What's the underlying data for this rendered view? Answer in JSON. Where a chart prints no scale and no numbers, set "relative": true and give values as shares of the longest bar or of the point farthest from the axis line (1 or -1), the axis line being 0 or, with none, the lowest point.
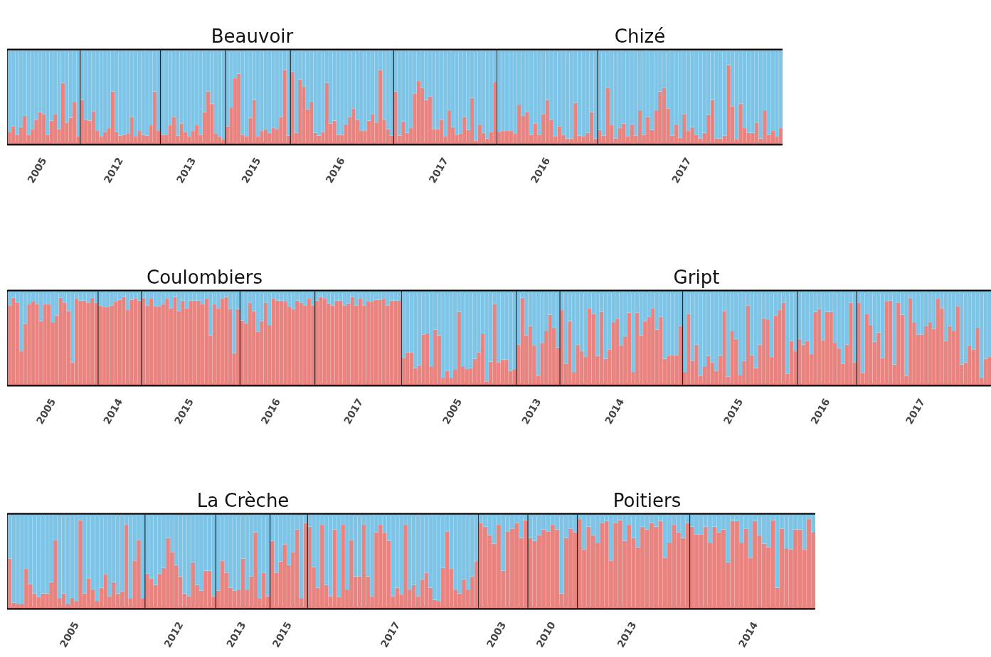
{
  "chart_data": [
    {
      "type": "bar",
      "stacked": true,
      "relative": true,
      "title": "Beauvoir",
      "categories": [
        null,
        null,
        null,
        null,
        null,
        null,
        null,
        null,
        null,
        "2005",
        null,
        null,
        null,
        null,
        null,
        null,
        null,
        null,
        null,
        null,
        null,
        null,
        null,
        null,
        null,
        null,
        null,
        null,
        null,
        "2012",
        null,
        null,
        null,
        null,
        null,
        null,
        null,
        null,
        null,
        null,
        null,
        null,
        null,
        null,
        null,
        null,
        null,
        null,
        "2013",
        null,
        null,
        null,
        null,
        null,
        null,
        null,
        null,
        null,
        null,
        null,
        null,
        null,
        null,
        null,
        null,
        "2015",
        null,
        null,
        null,
        null,
        null,
        null,
        null,
        null,
        null,
        null,
        null,
        null,
        null,
        null,
        null,
        null,
        null,
        null,
        null,
        null,
        null,
        "2016",
        null,
        null,
        null,
        null,
        null,
        null,
        null,
        null,
        null,
        null,
        null,
        null,
        null,
        null,
        null,
        null,
        null,
        null,
        null,
        null,
        null,
        null,
        null,
        null,
        null,
        null,
        "2017",
        null,
        null,
        null,
        null,
        null,
        null,
        null,
        null,
        null,
        null,
        null,
        null,
        null
      ],
      "series": [
        {
          "color": "#e8837f",
          "values": [
            0.13,
            0.19,
            0.1,
            0.18,
            0.3,
            0.1,
            0.16,
            0.26,
            0.34,
            0.32,
            0.1,
            0.25,
            0.32,
            0.16,
            0.65,
            0.23,
            0.28,
            0.45,
            0.08,
            0.47,
            0.26,
            0.25,
            0.35,
            0.14,
            0.08,
            0.13,
            0.17,
            0.56,
            0.13,
            0.09,
            0.1,
            0.11,
            0.29,
            0.08,
            0.14,
            0.1,
            0.09,
            0.2,
            0.56,
            0.14,
            0.1,
            0.1,
            0.2,
            0.29,
            0.09,
            0.22,
            0.13,
            0.08,
            0.14,
            0.2,
            0.1,
            0.34,
            0.56,
            0.43,
            0.11,
            0.08,
            0.05,
            0.19,
            0.39,
            0.7,
            0.75,
            0.1,
            0.08,
            0.28,
            0.47,
            0.08,
            0.14,
            0.16,
            0.12,
            0.17,
            0.16,
            0.29,
            0.79,
            0.09,
            0.77,
            0.12,
            0.69,
            0.61,
            0.37,
            0.45,
            0.12,
            0.09,
            0.13,
            0.65,
            0.22,
            0.25,
            0.1,
            0.1,
            0.21,
            0.29,
            0.38,
            0.26,
            0.14,
            0.14,
            0.25,
            0.32,
            0.23,
            0.79,
            0.26,
            0.16,
            0.09,
            0.56,
            0.09,
            0.24,
            0.12,
            0.17,
            0.54,
            0.67,
            0.6,
            0.47,
            0.51,
            0.16,
            0.16,
            0.26,
            0.08,
            0.36,
            0.18,
            0.1,
            0.11,
            0.29,
            0.15,
            0.49,
            0.04,
            0.21,
            0.12,
            0.06,
            0.13,
            0.66
          ]
        },
        {
          "color": "#7dc4e6",
          "values": [
            0.87,
            0.81,
            0.9,
            0.82,
            0.7,
            0.9,
            0.84,
            0.74,
            0.66,
            0.68,
            0.9,
            0.75,
            0.68,
            0.84,
            0.35,
            0.77,
            0.72,
            0.55,
            0.92,
            0.53,
            0.74,
            0.75,
            0.65,
            0.86,
            0.92,
            0.87,
            0.83,
            0.44,
            0.87,
            0.91,
            0.9,
            0.89,
            0.71,
            0.92,
            0.86,
            0.9,
            0.91,
            0.8,
            0.44,
            0.86,
            0.9,
            0.9,
            0.8,
            0.71,
            0.91,
            0.78,
            0.87,
            0.92,
            0.86,
            0.8,
            0.9,
            0.66,
            0.44,
            0.57,
            0.89,
            0.92,
            0.95,
            0.81,
            0.61,
            0.3,
            0.25,
            0.9,
            0.92,
            0.72,
            0.53,
            0.92,
            0.86,
            0.84,
            0.88,
            0.83,
            0.84,
            0.71,
            0.21,
            0.91,
            0.23,
            0.88,
            0.31,
            0.39,
            0.63,
            0.55,
            0.88,
            0.91,
            0.87,
            0.35,
            0.78,
            0.75,
            0.9,
            0.9,
            0.79,
            0.71,
            0.62,
            0.74,
            0.86,
            0.86,
            0.75,
            0.68,
            0.77,
            0.21,
            0.74,
            0.84,
            0.91,
            0.44,
            0.91,
            0.76,
            0.88,
            0.83,
            0.46,
            0.33,
            0.4,
            0.53,
            0.49,
            0.84,
            0.84,
            0.74,
            0.92,
            0.64,
            0.82,
            0.9,
            0.89,
            0.71,
            0.85,
            0.51,
            0.96,
            0.79,
            0.88,
            0.94,
            0.87,
            0.34
          ]
        }
      ]
    },
    {
      "type": "bar",
      "stacked": true,
      "relative": true,
      "title": "Chizé",
      "categories": [
        null,
        null,
        null,
        null,
        null,
        null,
        null,
        null,
        null,
        null,
        null,
        null,
        "2016",
        null,
        null,
        null,
        null,
        null,
        null,
        null,
        null,
        null,
        null,
        null,
        null,
        null,
        null,
        null,
        null,
        null,
        null,
        null,
        null,
        null,
        null,
        null,
        null,
        null,
        null,
        null,
        null,
        null,
        null,
        null,
        null,
        null,
        null,
        "2017",
        null,
        null,
        null,
        null,
        null,
        null,
        null,
        null,
        null,
        null,
        null,
        null,
        null,
        null,
        null,
        null,
        null,
        null,
        null,
        null,
        null,
        null,
        null
      ],
      "series": [
        {
          "color": "#e8837f",
          "values": [
            0.13,
            0.14,
            0.14,
            0.14,
            0.11,
            0.42,
            0.3,
            0.34,
            0.1,
            0.22,
            0.1,
            0.32,
            0.47,
            0.26,
            0.08,
            0.19,
            0.1,
            0.06,
            0.06,
            0.44,
            0.09,
            0.08,
            0.12,
            0.34,
            0.06,
            0.15,
            0.09,
            0.6,
            0.2,
            0.06,
            0.17,
            0.22,
            0.08,
            0.21,
            0.09,
            0.36,
            0.1,
            0.29,
            0.15,
            0.36,
            0.56,
            0.6,
            0.38,
            0.09,
            0.21,
            0.07,
            0.32,
            0.14,
            0.18,
            0.1,
            0.06,
            0.12,
            0.31,
            0.47,
            0.06,
            0.06,
            0.09,
            0.84,
            0.4,
            0.05,
            0.43,
            0.17,
            0.12,
            0.12,
            0.23,
            0.06,
            0.36,
            0.1,
            0.14,
            0.08,
            0.17
          ]
        },
        {
          "color": "#7dc4e6",
          "values": [
            0.87,
            0.86,
            0.86,
            0.86,
            0.89,
            0.58,
            0.7,
            0.66,
            0.9,
            0.78,
            0.9,
            0.68,
            0.53,
            0.74,
            0.92,
            0.81,
            0.9,
            0.94,
            0.94,
            0.56,
            0.91,
            0.92,
            0.88,
            0.66,
            0.94,
            0.85,
            0.91,
            0.4,
            0.8,
            0.94,
            0.83,
            0.78,
            0.92,
            0.79,
            0.91,
            0.64,
            0.9,
            0.71,
            0.85,
            0.64,
            0.44,
            0.4,
            0.62,
            0.91,
            0.79,
            0.93,
            0.68,
            0.86,
            0.82,
            0.9,
            0.94,
            0.88,
            0.69,
            0.53,
            0.94,
            0.94,
            0.91,
            0.16,
            0.6,
            0.95,
            0.57,
            0.83,
            0.88,
            0.88,
            0.77,
            0.94,
            0.64,
            0.9,
            0.86,
            0.92,
            0.83
          ]
        }
      ]
    },
    {
      "type": "bar",
      "stacked": true,
      "relative": true,
      "title": "Coulombiers",
      "categories": [
        null,
        null,
        null,
        null,
        null,
        null,
        null,
        null,
        null,
        null,
        null,
        "2005",
        null,
        null,
        null,
        null,
        null,
        null,
        null,
        null,
        null,
        null,
        null,
        null,
        null,
        null,
        null,
        null,
        "2014",
        null,
        null,
        null,
        null,
        null,
        null,
        null,
        null,
        null,
        null,
        null,
        null,
        null,
        null,
        null,
        null,
        null,
        "2015",
        null,
        null,
        null,
        null,
        null,
        null,
        null,
        null,
        null,
        null,
        null,
        null,
        null,
        null,
        null,
        null,
        null,
        null,
        null,
        null,
        null,
        "2016",
        null,
        null,
        null,
        null,
        null,
        null,
        null,
        null,
        null,
        null,
        null,
        null,
        null,
        null,
        null,
        null,
        null,
        null,
        null,
        null,
        "2017",
        null,
        null,
        null,
        null,
        null,
        null,
        null,
        null,
        null,
        null
      ],
      "series": [
        {
          "color": "#e8837f",
          "values": [
            0.85,
            0.93,
            0.88,
            0.36,
            0.65,
            0.86,
            0.89,
            0.86,
            0.68,
            0.86,
            0.86,
            0.67,
            0.74,
            0.93,
            0.88,
            0.79,
            0.24,
            0.92,
            0.9,
            0.9,
            0.88,
            0.93,
            0.88,
            0.85,
            0.83,
            0.83,
            0.85,
            0.89,
            0.91,
            0.94,
            0.8,
            0.91,
            0.92,
            0.9,
            0.93,
            0.85,
            0.92,
            0.84,
            0.84,
            0.86,
            0.92,
            0.82,
            0.94,
            0.79,
            0.9,
            0.82,
            0.9,
            0.9,
            0.9,
            0.86,
            0.92,
            0.53,
            0.86,
            0.82,
            0.92,
            0.94,
            0.81,
            0.34,
            0.81,
            0.69,
            0.66,
            0.88,
            0.79,
            0.57,
            0.68,
            0.88,
            0.64,
            0.92,
            0.9,
            0.9,
            0.89,
            0.84,
            0.81,
            0.9,
            0.88,
            0.85,
            0.92,
            0.85,
            0.9,
            0.94,
            0.92,
            0.87,
            0.85,
            0.9,
            0.9,
            0.85,
            0.87,
            0.94,
            0.85,
            0.92,
            0.85,
            0.89,
            0.89,
            0.91,
            0.91,
            0.92,
            0.85,
            0.9,
            0.9,
            0.9
          ]
        },
        {
          "color": "#7dc4e6",
          "values": [
            0.15,
            0.07,
            0.12,
            0.64,
            0.35,
            0.14,
            0.11,
            0.14,
            0.32,
            0.14,
            0.14,
            0.33,
            0.26,
            0.07,
            0.12,
            0.21,
            0.76,
            0.08,
            0.1,
            0.1,
            0.12,
            0.07,
            0.12,
            0.15,
            0.17,
            0.17,
            0.15,
            0.11,
            0.09,
            0.06,
            0.2,
            0.09,
            0.08,
            0.1,
            0.07,
            0.15,
            0.08,
            0.16,
            0.16,
            0.14,
            0.08,
            0.18,
            0.06,
            0.21,
            0.1,
            0.18,
            0.1,
            0.1,
            0.1,
            0.14,
            0.08,
            0.47,
            0.14,
            0.18,
            0.08,
            0.06,
            0.19,
            0.66,
            0.19,
            0.31,
            0.34,
            0.12,
            0.21,
            0.43,
            0.32,
            0.12,
            0.36,
            0.08,
            0.1,
            0.1,
            0.11,
            0.16,
            0.19,
            0.1,
            0.12,
            0.15,
            0.08,
            0.15,
            0.1,
            0.06,
            0.08,
            0.13,
            0.15,
            0.1,
            0.1,
            0.15,
            0.13,
            0.06,
            0.15,
            0.08,
            0.15,
            0.11,
            0.11,
            0.09,
            0.09,
            0.08,
            0.15,
            0.1,
            0.1,
            0.1
          ]
        }
      ]
    },
    {
      "type": "bar",
      "stacked": true,
      "relative": true,
      "title": "Gript",
      "categories": [
        null,
        null,
        null,
        null,
        null,
        null,
        null,
        null,
        null,
        null,
        null,
        null,
        null,
        null,
        "2005",
        null,
        null,
        null,
        null,
        null,
        null,
        null,
        null,
        null,
        null,
        null,
        null,
        null,
        null,
        null,
        null,
        null,
        null,
        null,
        "2013",
        null,
        null,
        null,
        null,
        null,
        null,
        null,
        null,
        null,
        null,
        null,
        null,
        null,
        null,
        null,
        null,
        null,
        null,
        null,
        null,
        "2014",
        null,
        null,
        null,
        null,
        null,
        null,
        null,
        null,
        null,
        null,
        null,
        null,
        null,
        null,
        null,
        null,
        null,
        null,
        null,
        null,
        null,
        null,
        null,
        null,
        null,
        null,
        null,
        null,
        null,
        "2015",
        null,
        null,
        null,
        null,
        null,
        null,
        null,
        null,
        null,
        null,
        null,
        null,
        null,
        null,
        null,
        null,
        null,
        null,
        null,
        null,
        null,
        "2016",
        null,
        null,
        null,
        null,
        null,
        null,
        null,
        null,
        null,
        null,
        null,
        null,
        null,
        null,
        null,
        null,
        null,
        null,
        null,
        null,
        null,
        null,
        null,
        "2017",
        null,
        null,
        null,
        null,
        null,
        null,
        null,
        null,
        null,
        null,
        null,
        null,
        null,
        null,
        null,
        null,
        null
      ],
      "series": [
        {
          "color": "#e8837f",
          "values": [
            0.29,
            0.35,
            0.35,
            0.18,
            0.21,
            0.54,
            0.55,
            0.2,
            0.59,
            0.53,
            0.08,
            0.15,
            0.08,
            0.17,
            0.78,
            0.2,
            0.17,
            0.18,
            0.28,
            0.35,
            0.55,
            0.04,
            0.25,
            0.86,
            0.24,
            0.27,
            0.27,
            0.15,
            0.17,
            0.43,
            0.93,
            0.53,
            0.63,
            0.42,
            0.1,
            0.45,
            0.58,
            0.75,
            0.61,
            0.4,
            0.8,
            0.23,
            0.68,
            0.14,
            0.43,
            0.36,
            0.3,
            0.82,
            0.76,
            0.31,
            0.78,
            0.28,
            0.38,
            0.67,
            0.71,
            0.42,
            0.52,
            0.77,
            0.14,
            0.77,
            0.53,
            0.68,
            0.73,
            0.82,
            0.59,
            0.73,
            0.28,
            0.32,
            0.32,
            0.32,
            0.63,
            0.14,
            0.76,
            0.26,
            0.43,
            0.1,
            0.2,
            0.31,
            0.24,
            0.15,
            0.31,
            0.79,
            0.09,
            0.58,
            0.49,
            0.11,
            0.26,
            0.85,
            0.32,
            0.18,
            0.43,
            0.71,
            0.7,
            0.3,
            0.74,
            0.8,
            0.88,
            0.12,
            0.47,
            0.36,
            0.49,
            0.43,
            0.47,
            0.33,
            0.78,
            0.81,
            0.48,
            0.78,
            0.78,
            0.45,
            0.39,
            0.23,
            0.43,
            0.88,
            0.24,
            0.88,
            0.13,
            0.76,
            0.64,
            0.46,
            0.56,
            0.29,
            0.89,
            0.9,
            0.22,
            0.88,
            0.75,
            0.1,
            0.93,
            0.67,
            0.54,
            0.54,
            0.63,
            0.67,
            0.6,
            0.92,
            0.82,
            0.47,
            0.63,
            0.58,
            0.84,
            0.22,
            0.24,
            0.42,
            0.38,
            0.61,
            0.08,
            0.28,
            0.3
          ]
        },
        {
          "color": "#7dc4e6",
          "values": [
            0.71,
            0.65,
            0.65,
            0.82,
            0.79,
            0.46,
            0.45,
            0.8,
            0.41,
            0.47,
            0.92,
            0.85,
            0.92,
            0.83,
            0.22,
            0.8,
            0.83,
            0.82,
            0.72,
            0.65,
            0.45,
            0.96,
            0.75,
            0.14,
            0.76,
            0.73,
            0.73,
            0.85,
            0.83,
            0.57,
            0.07,
            0.47,
            0.37,
            0.58,
            0.9,
            0.55,
            0.42,
            0.25,
            0.39,
            0.6,
            0.2,
            0.77,
            0.32,
            0.86,
            0.57,
            0.64,
            0.7,
            0.18,
            0.24,
            0.69,
            0.22,
            0.72,
            0.62,
            0.33,
            0.29,
            0.58,
            0.48,
            0.23,
            0.86,
            0.23,
            0.47,
            0.32,
            0.27,
            0.18,
            0.41,
            0.27,
            0.72,
            0.68,
            0.68,
            0.68,
            0.37,
            0.86,
            0.24,
            0.74,
            0.57,
            0.9,
            0.8,
            0.69,
            0.76,
            0.85,
            0.69,
            0.21,
            0.91,
            0.42,
            0.51,
            0.89,
            0.74,
            0.15,
            0.68,
            0.82,
            0.57,
            0.29,
            0.3,
            0.7,
            0.26,
            0.2,
            0.12,
            0.88,
            0.53,
            0.64,
            0.51,
            0.57,
            0.53,
            0.67,
            0.22,
            0.19,
            0.52,
            0.22,
            0.22,
            0.55,
            0.61,
            0.77,
            0.57,
            0.12,
            0.76,
            0.12,
            0.87,
            0.24,
            0.36,
            0.54,
            0.44,
            0.71,
            0.11,
            0.1,
            0.78,
            0.12,
            0.25,
            0.9,
            0.07,
            0.33,
            0.46,
            0.46,
            0.37,
            0.33,
            0.4,
            0.08,
            0.18,
            0.53,
            0.37,
            0.42,
            0.16,
            0.78,
            0.76,
            0.58,
            0.62,
            0.39,
            0.92,
            0.72,
            0.7
          ]
        }
      ]
    },
    {
      "type": "bar",
      "stacked": true,
      "relative": true,
      "title": "La Crèche",
      "categories": [
        null,
        null,
        null,
        null,
        null,
        null,
        null,
        null,
        null,
        null,
        null,
        null,
        null,
        null,
        null,
        null,
        "2005",
        null,
        null,
        null,
        null,
        null,
        null,
        null,
        null,
        null,
        null,
        null,
        null,
        null,
        null,
        null,
        null,
        null,
        null,
        null,
        null,
        null,
        null,
        null,
        null,
        "2012",
        null,
        null,
        null,
        null,
        null,
        null,
        null,
        null,
        null,
        null,
        null,
        null,
        null,
        null,
        "2013",
        null,
        null,
        null,
        null,
        null,
        null,
        null,
        null,
        null,
        null,
        "2015",
        null,
        null,
        null,
        null,
        null,
        null,
        null,
        null,
        null,
        null,
        null,
        null,
        null,
        null,
        null,
        null,
        null,
        null,
        null,
        null,
        null,
        null,
        null,
        null,
        null,
        "2017",
        null,
        null,
        null,
        null,
        null,
        null,
        null,
        null,
        null,
        null,
        null,
        null,
        null,
        null,
        null,
        null,
        null,
        null,
        null
      ],
      "series": [
        {
          "color": "#e8837f",
          "values": [
            0.53,
            0.06,
            0.05,
            0.05,
            0.42,
            0.26,
            0.16,
            0.12,
            0.16,
            0.16,
            0.28,
            0.73,
            0.11,
            0.16,
            0.05,
            0.11,
            0.08,
            0.94,
            0.16,
            0.32,
            0.2,
            0.08,
            0.22,
            0.36,
            0.13,
            0.28,
            0.16,
            0.18,
            0.89,
            0.11,
            0.51,
            0.73,
            0.11,
            0.37,
            0.32,
            0.25,
            0.37,
            0.43,
            0.75,
            0.6,
            0.46,
            0.34,
            0.16,
            0.13,
            0.49,
            0.25,
            0.19,
            0.4,
            0.4,
            0.13,
            0.19,
            0.51,
            0.38,
            0.22,
            0.19,
            0.2,
            0.53,
            0.2,
            0.34,
            0.81,
            0.11,
            0.38,
            0.13,
            0.72,
            0.38,
            0.5,
            0.68,
            0.46,
            0.6,
            0.84,
            0.11,
            0.91,
            0.87,
            0.44,
            0.22,
            0.89,
            0.25,
            0.13,
            0.84,
            0.12,
            0.89,
            0.2,
            0.73,
            0.34,
            0.34,
            0.89,
            0.34,
            0.13,
            0.81,
            0.89,
            0.81,
            0.72,
            0.13,
            0.22,
            0.15,
            0.89,
            0.2,
            0.25,
            0.13,
            0.31,
            0.38,
            0.22,
            0.09,
            0.08,
            0.43,
            0.82,
            0.42,
            0.2,
            0.16,
            0.31,
            0.2,
            0.34,
            0.5
          ]
        },
        {
          "color": "#7dc4e6",
          "values": [
            0.47,
            0.94,
            0.95,
            0.95,
            0.58,
            0.74,
            0.84,
            0.88,
            0.84,
            0.84,
            0.72,
            0.27,
            0.89,
            0.84,
            0.95,
            0.89,
            0.92,
            0.06,
            0.84,
            0.68,
            0.8,
            0.92,
            0.78,
            0.64,
            0.87,
            0.72,
            0.84,
            0.82,
            0.11,
            0.89,
            0.49,
            0.27,
            0.89,
            0.63,
            0.68,
            0.75,
            0.63,
            0.57,
            0.25,
            0.4,
            0.54,
            0.66,
            0.84,
            0.87,
            0.51,
            0.75,
            0.81,
            0.6,
            0.6,
            0.87,
            0.81,
            0.49,
            0.62,
            0.78,
            0.81,
            0.8,
            0.47,
            0.8,
            0.66,
            0.19,
            0.89,
            0.62,
            0.87,
            0.28,
            0.62,
            0.5,
            0.32,
            0.54,
            0.4,
            0.16,
            0.89,
            0.09,
            0.13,
            0.56,
            0.78,
            0.11,
            0.75,
            0.87,
            0.16,
            0.88,
            0.11,
            0.8,
            0.27,
            0.66,
            0.66,
            0.11,
            0.66,
            0.87,
            0.19,
            0.11,
            0.19,
            0.28,
            0.87,
            0.78,
            0.85,
            0.11,
            0.8,
            0.75,
            0.87,
            0.69,
            0.62,
            0.78,
            0.91,
            0.92,
            0.57,
            0.18,
            0.58,
            0.8,
            0.84,
            0.69,
            0.8,
            0.66,
            0.5
          ]
        }
      ]
    },
    {
      "type": "bar",
      "stacked": true,
      "relative": true,
      "title": "Poitiers",
      "categories": [
        null,
        null,
        null,
        null,
        null,
        "2003",
        null,
        null,
        null,
        null,
        null,
        null,
        null,
        null,
        null,
        null,
        "2010",
        null,
        null,
        null,
        null,
        null,
        null,
        null,
        null,
        null,
        null,
        null,
        null,
        null,
        null,
        null,
        null,
        null,
        "2013",
        null,
        null,
        null,
        null,
        null,
        null,
        null,
        null,
        null,
        null,
        null,
        null,
        null,
        null,
        null,
        null,
        null,
        null,
        null,
        null,
        null,
        null,
        null,
        null,
        null,
        null,
        "2014",
        null,
        null,
        null,
        null,
        null,
        null,
        null,
        null,
        null,
        null,
        null,
        null,
        null
      ],
      "series": [
        {
          "color": "#e8837f",
          "values": [
            0.91,
            0.87,
            0.78,
            0.69,
            0.89,
            0.4,
            0.82,
            0.85,
            0.91,
            0.75,
            0.94,
            0.75,
            0.72,
            0.78,
            0.84,
            0.82,
            0.89,
            0.84,
            0.16,
            0.75,
            0.85,
            0.81,
            0.95,
            0.63,
            0.87,
            0.78,
            0.7,
            0.91,
            0.93,
            0.51,
            0.91,
            0.94,
            0.72,
            0.89,
            0.75,
            0.65,
            0.87,
            0.84,
            0.91,
            0.87,
            0.93,
            0.54,
            0.7,
            0.89,
            0.81,
            0.75,
            0.91,
            0.87,
            0.79,
            0.79,
            0.87,
            0.7,
            0.87,
            0.81,
            0.84,
            0.49,
            0.93,
            0.93,
            0.7,
            0.85,
            0.54,
            0.93,
            0.78,
            0.69,
            0.65,
            0.94,
            0.22,
            0.85,
            0.64,
            0.63,
            0.84,
            0.84,
            0.63,
            0.95,
            0.81
          ]
        },
        {
          "color": "#7dc4e6",
          "values": [
            0.09,
            0.13,
            0.22,
            0.31,
            0.11,
            0.6,
            0.18,
            0.15,
            0.09,
            0.25,
            0.06,
            0.25,
            0.28,
            0.22,
            0.16,
            0.18,
            0.11,
            0.16,
            0.84,
            0.25,
            0.15,
            0.19,
            0.05,
            0.37,
            0.13,
            0.22,
            0.3,
            0.09,
            0.07,
            0.49,
            0.09,
            0.06,
            0.28,
            0.11,
            0.25,
            0.35,
            0.13,
            0.16,
            0.09,
            0.13,
            0.07,
            0.46,
            0.3,
            0.11,
            0.19,
            0.25,
            0.09,
            0.13,
            0.21,
            0.21,
            0.13,
            0.3,
            0.13,
            0.19,
            0.16,
            0.51,
            0.07,
            0.07,
            0.3,
            0.15,
            0.46,
            0.07,
            0.22,
            0.31,
            0.35,
            0.06,
            0.78,
            0.15,
            0.36,
            0.37,
            0.16,
            0.16,
            0.37,
            0.05,
            0.19
          ]
        }
      ]
    }
  ]
}
